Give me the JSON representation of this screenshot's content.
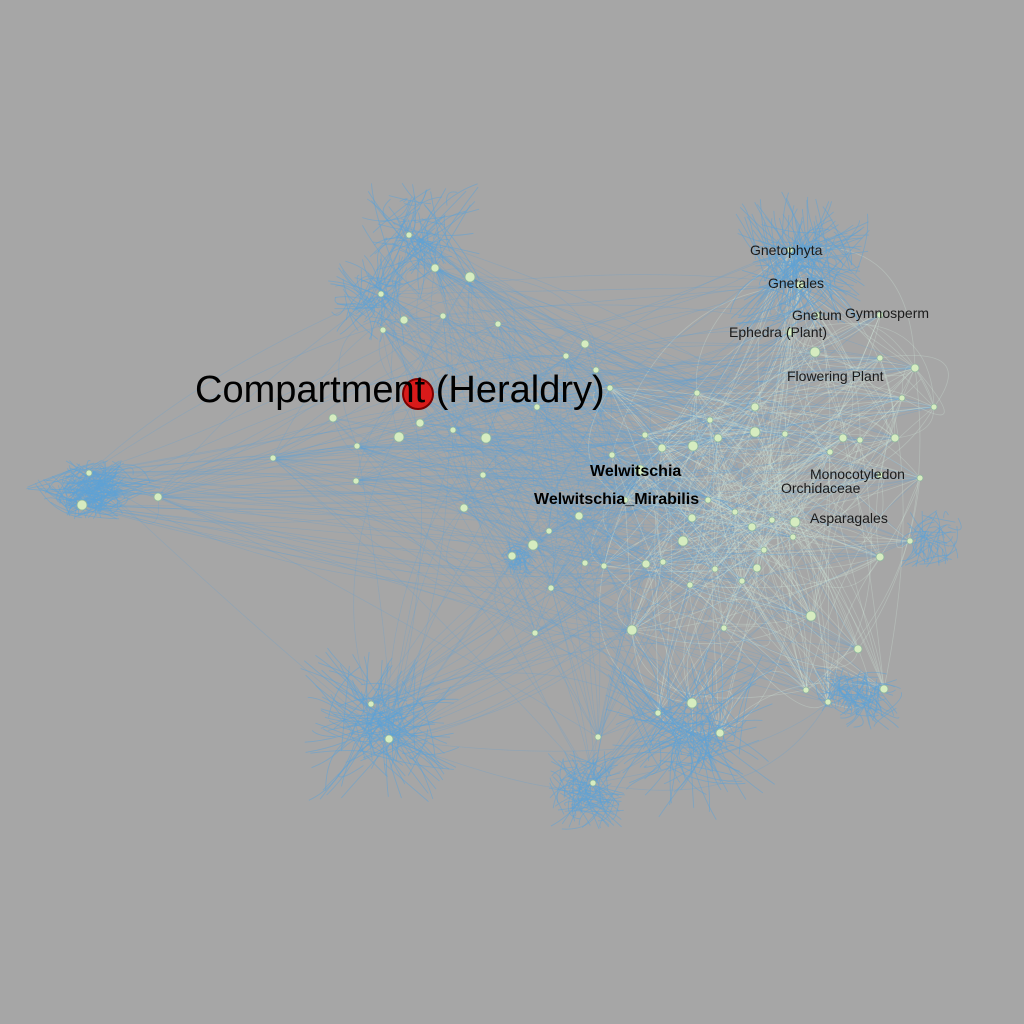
{
  "graph": {
    "highlighted_node": "Compartment (Heraldry)",
    "labels": {
      "compartment": "Compartment (Heraldry)",
      "welwitschia": "Welwitschia",
      "welwitschia_mirabilis": "Welwitschia_Mirabilis",
      "gnetophyta": "Gnetophyta",
      "gnetales": "Gnetales",
      "gnetum": "Gnetum",
      "gymnosperm": "Gymnosperm",
      "ephedra": "Ephedra (Plant)",
      "flowering_plant": "Flowering Plant",
      "monocotyledon": "Monocotyledon",
      "orchidaceae": "Orchidaceae",
      "asparagales": "Asparagales"
    },
    "colors": {
      "background": "#a6a6a6",
      "edge_blue": "#5fa3d6",
      "edge_light": "#cfe3d6",
      "node_fill": "#d6ecc0",
      "node_stroke": "#8fb5a0",
      "highlight_fill": "#d91a1a",
      "highlight_stroke": "#7a0000"
    }
  }
}
